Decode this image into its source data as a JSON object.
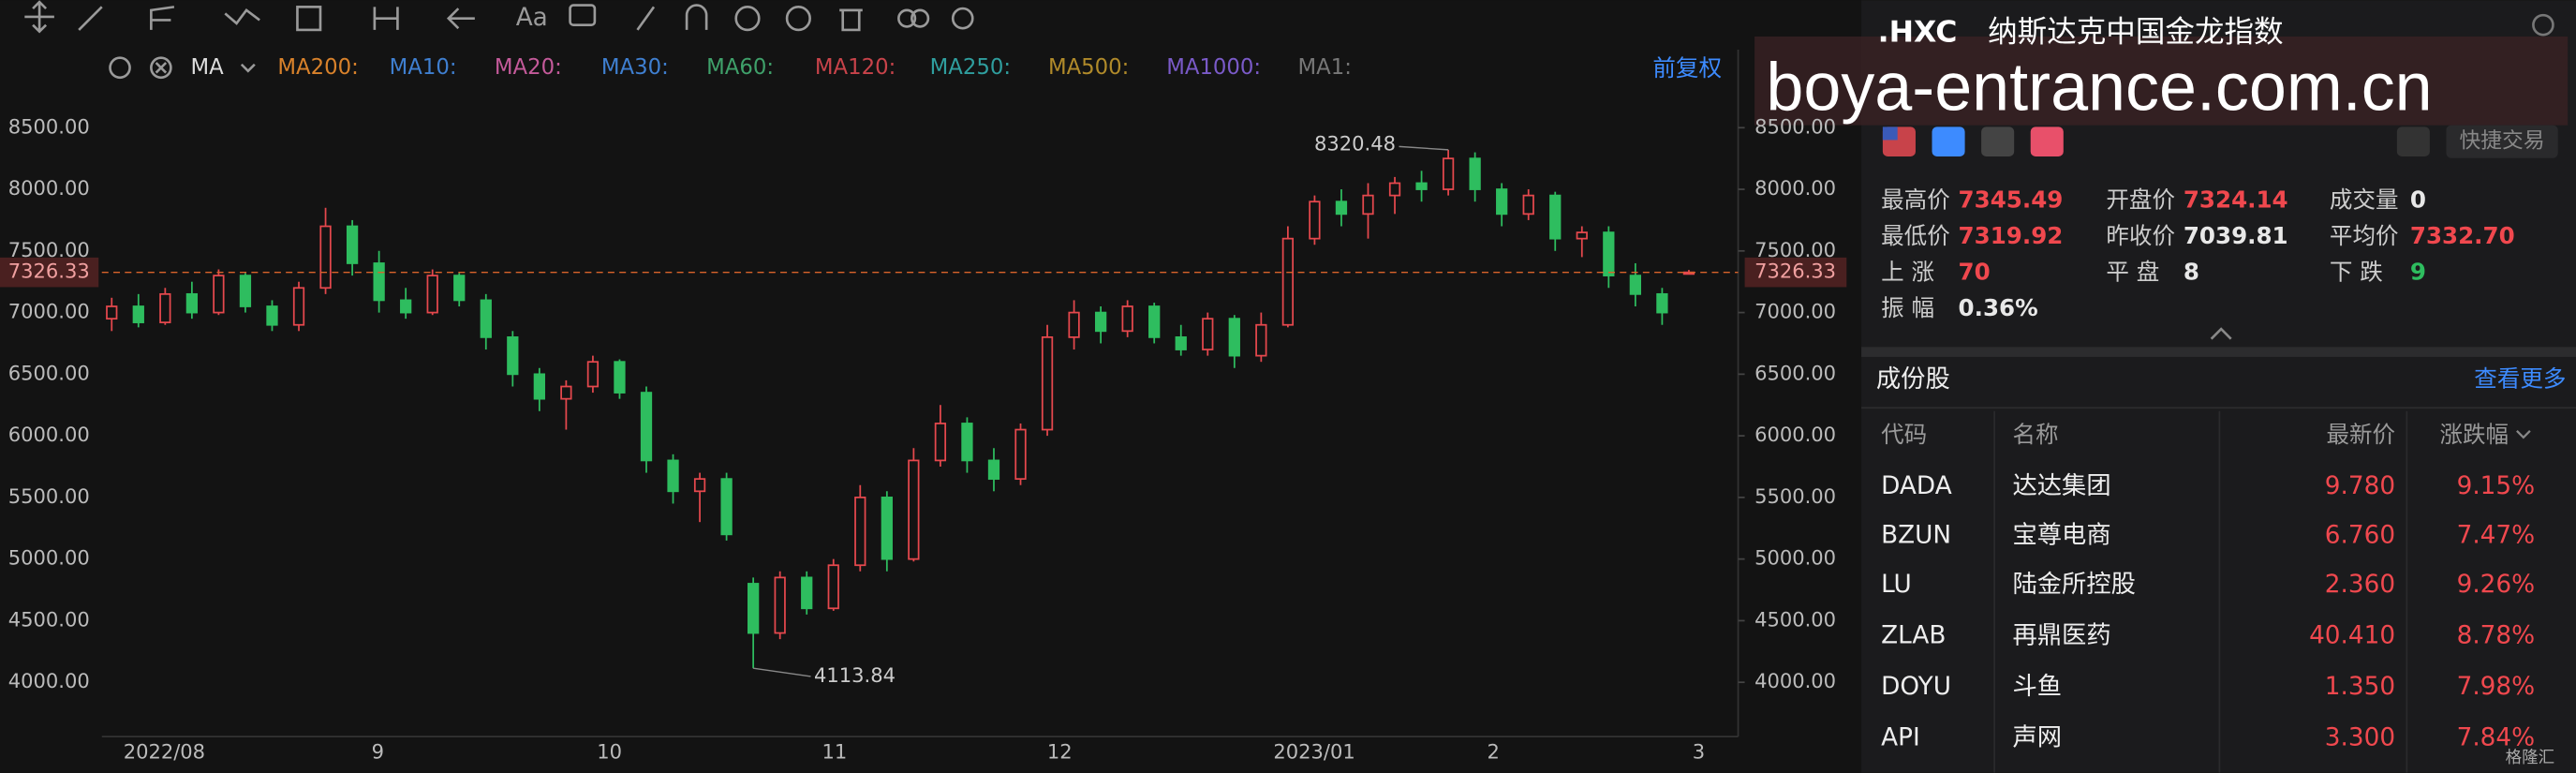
{
  "toolbar": {
    "ma_label": "MA",
    "ma_items": [
      {
        "name": "MA200:",
        "color": "#d9822b"
      },
      {
        "name": "MA10:",
        "color": "#3f7fd0"
      },
      {
        "name": "MA20:",
        "color": "#c45a9a"
      },
      {
        "name": "MA30:",
        "color": "#3f7fd0"
      },
      {
        "name": "MA60:",
        "color": "#3fa06a"
      },
      {
        "name": "MA120:",
        "color": "#c8434a"
      },
      {
        "name": "MA250:",
        "color": "#2f9e9e"
      },
      {
        "name": "MA500:",
        "color": "#b08a2a"
      },
      {
        "name": "MA1000:",
        "color": "#7a5ac8"
      },
      {
        "name": "MA1:",
        "color": "#777777"
      }
    ],
    "adjust": "前复权"
  },
  "chart_data": {
    "type": "candlestick",
    "x_labels": [
      "2022/08",
      "9",
      "10",
      "11",
      "12",
      "2023/01",
      "2",
      "3"
    ],
    "ylim": [
      3600,
      9000
    ],
    "yticks": [
      {
        "value": 4000,
        "label": "4000.00"
      },
      {
        "value": 4500,
        "label": "4500.00"
      },
      {
        "value": 5000,
        "label": "5000.00"
      },
      {
        "value": 5500,
        "label": "5500.00"
      },
      {
        "value": 6000,
        "label": "6000.00"
      },
      {
        "value": 6500,
        "label": "6500.00"
      },
      {
        "value": 7000,
        "label": "7000.00"
      },
      {
        "value": 7500,
        "label": "7500.00"
      },
      {
        "value": 8000,
        "label": "8000.00"
      },
      {
        "value": 8500,
        "label": "8500.00"
      }
    ],
    "up_color": "#e5484d",
    "down_color": "#2ebd5f",
    "last_line_color": "#d9632b",
    "candles": [
      [
        6950,
        7120,
        6850,
        7050
      ],
      [
        7050,
        7150,
        6880,
        6920
      ],
      [
        6920,
        7200,
        6900,
        7150
      ],
      [
        7150,
        7250,
        6950,
        7000
      ],
      [
        7000,
        7350,
        6980,
        7300
      ],
      [
        7300,
        7320,
        7000,
        7050
      ],
      [
        7050,
        7100,
        6850,
        6900
      ],
      [
        6900,
        7250,
        6850,
        7200
      ],
      [
        7200,
        7850,
        7150,
        7700
      ],
      [
        7700,
        7750,
        7300,
        7400
      ],
      [
        7400,
        7500,
        7000,
        7100
      ],
      [
        7100,
        7200,
        6950,
        7000
      ],
      [
        7000,
        7350,
        6980,
        7300
      ],
      [
        7300,
        7320,
        7050,
        7100
      ],
      [
        7100,
        7150,
        6700,
        6800
      ],
      [
        6800,
        6850,
        6400,
        6500
      ],
      [
        6500,
        6550,
        6200,
        6300
      ],
      [
        6300,
        6450,
        6050,
        6400
      ],
      [
        6400,
        6650,
        6350,
        6600
      ],
      [
        6600,
        6620,
        6300,
        6350
      ],
      [
        6350,
        6400,
        5700,
        5800
      ],
      [
        5800,
        5850,
        5450,
        5550
      ],
      [
        5550,
        5700,
        5300,
        5650
      ],
      [
        5650,
        5700,
        5150,
        5200
      ],
      [
        4800,
        4850,
        4113.84,
        4400
      ],
      [
        4400,
        4900,
        4350,
        4850
      ],
      [
        4850,
        4900,
        4550,
        4600
      ],
      [
        4600,
        5000,
        4580,
        4950
      ],
      [
        4950,
        5600,
        4900,
        5500
      ],
      [
        5500,
        5550,
        4900,
        5000
      ],
      [
        5000,
        5900,
        4980,
        5800
      ],
      [
        5800,
        6250,
        5750,
        6100
      ],
      [
        6100,
        6150,
        5700,
        5800
      ],
      [
        5800,
        5900,
        5550,
        5650
      ],
      [
        5650,
        6100,
        5600,
        6050
      ],
      [
        6050,
        6900,
        6000,
        6800
      ],
      [
        6800,
        7100,
        6700,
        7000
      ],
      [
        7000,
        7050,
        6750,
        6850
      ],
      [
        6850,
        7100,
        6800,
        7050
      ],
      [
        7050,
        7080,
        6750,
        6800
      ],
      [
        6800,
        6900,
        6650,
        6700
      ],
      [
        6700,
        7000,
        6650,
        6950
      ],
      [
        6950,
        6980,
        6550,
        6650
      ],
      [
        6650,
        7000,
        6600,
        6900
      ],
      [
        6900,
        7700,
        6880,
        7600
      ],
      [
        7600,
        7950,
        7550,
        7900
      ],
      [
        7900,
        8000,
        7700,
        7800
      ],
      [
        7800,
        8050,
        7600,
        7950
      ],
      [
        7950,
        8100,
        7800,
        8050
      ],
      [
        8050,
        8150,
        7900,
        8000
      ],
      [
        8000,
        8320.48,
        7950,
        8250
      ],
      [
        8250,
        8300,
        7900,
        8000
      ],
      [
        8000,
        8050,
        7700,
        7800
      ],
      [
        7800,
        8000,
        7750,
        7950
      ],
      [
        7950,
        7980,
        7500,
        7600
      ],
      [
        7600,
        7700,
        7450,
        7650
      ],
      [
        7650,
        7700,
        7200,
        7300
      ],
      [
        7300,
        7400,
        7050,
        7150
      ],
      [
        7150,
        7200,
        6900,
        7000
      ],
      [
        7324.14,
        7345.49,
        7319.92,
        7326.33
      ]
    ]
  },
  "panel": {
    "symbol": ".HXC",
    "name": "纳斯达克中国金龙指数",
    "watermark": "boya-entrance.com.cn",
    "trade_button": "快捷交易",
    "stats": [
      {
        "label": "最高价",
        "value": "7345.49",
        "color": "#f0484e"
      },
      {
        "label": "开盘价",
        "value": "7324.14",
        "color": "#f0484e"
      },
      {
        "label": "成交量",
        "value": "0",
        "color": "#e8e8e8"
      },
      {
        "label": "最低价",
        "value": "7319.92",
        "color": "#f0484e"
      },
      {
        "label": "昨收价",
        "value": "7039.81",
        "color": "#e8e8e8"
      },
      {
        "label": "平均价",
        "value": "7332.70",
        "color": "#f0484e"
      },
      {
        "label": "上 涨",
        "value": "70",
        "color": "#f0484e"
      },
      {
        "label": "平 盘",
        "value": "8",
        "color": "#e8e8e8"
      },
      {
        "label": "下 跌",
        "value": "9",
        "color": "#2ebd5f"
      },
      {
        "label": "振 幅",
        "value": "0.36%",
        "color": "#e8e8e8"
      }
    ],
    "constituents_title": "成份股",
    "more": "查看更多",
    "headers": [
      "代码",
      "名称",
      "最新价",
      "涨跌幅"
    ],
    "rows": [
      [
        "DADA",
        "达达集团",
        "9.780",
        "9.15%"
      ],
      [
        "BZUN",
        "宝尊电商",
        "6.760",
        "7.47%"
      ],
      [
        "LU",
        "陆金所控股",
        "2.360",
        "9.26%"
      ],
      [
        "ZLAB",
        "再鼎医药",
        "40.410",
        "8.78%"
      ],
      [
        "DOYU",
        "斗鱼",
        "1.350",
        "7.98%"
      ],
      [
        "API",
        "声网",
        "3.300",
        "7.84%"
      ]
    ],
    "logo": "格隆汇"
  }
}
